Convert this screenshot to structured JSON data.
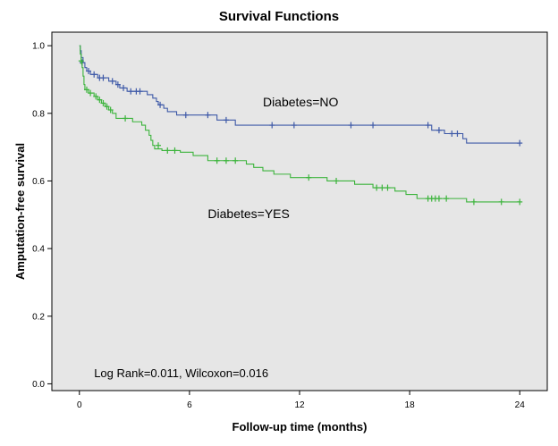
{
  "chart_data": {
    "type": "line",
    "title": "Survival Functions",
    "xlabel": "Follow-up time (months)",
    "ylabel": "Amputation-free survival",
    "xlim": [
      -1.5,
      25.5
    ],
    "ylim": [
      -0.02,
      1.04
    ],
    "x_ticks": [
      0,
      6,
      12,
      18,
      24
    ],
    "x_tick_labels": [
      "0",
      "6",
      "12",
      "18",
      "24"
    ],
    "y_ticks": [
      0.0,
      0.2,
      0.4,
      0.6,
      0.8,
      1.0
    ],
    "y_tick_labels": [
      "0.0",
      "0.2",
      "0.4",
      "0.6",
      "0.8",
      "1.0"
    ],
    "grid": false,
    "background_color": "#e6e6e6",
    "annotation": "Log Rank=0.011, Wilcoxon=0.016",
    "series": [
      {
        "name": "Diabetes=NO",
        "color": "#3f5aa8",
        "steps": [
          [
            0,
            1.0
          ],
          [
            0.05,
            0.985
          ],
          [
            0.1,
            0.965
          ],
          [
            0.2,
            0.95
          ],
          [
            0.3,
            0.935
          ],
          [
            0.4,
            0.925
          ],
          [
            0.6,
            0.915
          ],
          [
            1.0,
            0.905
          ],
          [
            1.6,
            0.895
          ],
          [
            2.0,
            0.885
          ],
          [
            2.2,
            0.875
          ],
          [
            2.6,
            0.865
          ],
          [
            3.7,
            0.855
          ],
          [
            4.0,
            0.845
          ],
          [
            4.2,
            0.835
          ],
          [
            4.3,
            0.825
          ],
          [
            4.6,
            0.815
          ],
          [
            4.8,
            0.805
          ],
          [
            5.3,
            0.795
          ],
          [
            7.5,
            0.78
          ],
          [
            8.5,
            0.765
          ],
          [
            19.2,
            0.75
          ],
          [
            19.9,
            0.74
          ],
          [
            20.9,
            0.725
          ],
          [
            21.1,
            0.712
          ],
          [
            24.0,
            0.712
          ]
        ],
        "censored": [
          [
            0.15,
            0.95
          ],
          [
            0.5,
            0.925
          ],
          [
            0.8,
            0.915
          ],
          [
            1.1,
            0.905
          ],
          [
            1.3,
            0.905
          ],
          [
            1.8,
            0.895
          ],
          [
            2.1,
            0.885
          ],
          [
            2.4,
            0.875
          ],
          [
            2.8,
            0.865
          ],
          [
            3.1,
            0.865
          ],
          [
            3.3,
            0.865
          ],
          [
            4.4,
            0.825
          ],
          [
            5.8,
            0.795
          ],
          [
            7.0,
            0.795
          ],
          [
            8.0,
            0.78
          ],
          [
            10.5,
            0.765
          ],
          [
            11.7,
            0.765
          ],
          [
            14.8,
            0.765
          ],
          [
            16.0,
            0.765
          ],
          [
            19.0,
            0.765
          ],
          [
            19.6,
            0.75
          ],
          [
            20.3,
            0.74
          ],
          [
            20.6,
            0.74
          ],
          [
            24.0,
            0.712
          ]
        ]
      },
      {
        "name": "Diabetes=YES",
        "color": "#3cb43c",
        "steps": [
          [
            0,
            1.0
          ],
          [
            0.05,
            0.975
          ],
          [
            0.1,
            0.955
          ],
          [
            0.15,
            0.935
          ],
          [
            0.2,
            0.91
          ],
          [
            0.25,
            0.885
          ],
          [
            0.3,
            0.87
          ],
          [
            0.5,
            0.86
          ],
          [
            0.8,
            0.85
          ],
          [
            1.0,
            0.84
          ],
          [
            1.2,
            0.83
          ],
          [
            1.4,
            0.82
          ],
          [
            1.6,
            0.81
          ],
          [
            1.8,
            0.8
          ],
          [
            2.0,
            0.785
          ],
          [
            2.9,
            0.775
          ],
          [
            3.4,
            0.765
          ],
          [
            3.6,
            0.75
          ],
          [
            3.8,
            0.735
          ],
          [
            3.9,
            0.72
          ],
          [
            4.0,
            0.705
          ],
          [
            4.1,
            0.695
          ],
          [
            4.5,
            0.69
          ],
          [
            5.5,
            0.685
          ],
          [
            6.2,
            0.675
          ],
          [
            7.0,
            0.66
          ],
          [
            9.1,
            0.65
          ],
          [
            9.5,
            0.64
          ],
          [
            10.0,
            0.63
          ],
          [
            10.6,
            0.62
          ],
          [
            11.5,
            0.61
          ],
          [
            13.5,
            0.6
          ],
          [
            15.0,
            0.59
          ],
          [
            16.0,
            0.58
          ],
          [
            17.2,
            0.57
          ],
          [
            17.8,
            0.56
          ],
          [
            18.4,
            0.548
          ],
          [
            21.1,
            0.538
          ],
          [
            24.0,
            0.538
          ]
        ],
        "censored": [
          [
            0.1,
            0.955
          ],
          [
            0.4,
            0.87
          ],
          [
            0.6,
            0.86
          ],
          [
            0.9,
            0.85
          ],
          [
            1.1,
            0.84
          ],
          [
            1.3,
            0.83
          ],
          [
            1.5,
            0.82
          ],
          [
            1.7,
            0.81
          ],
          [
            2.5,
            0.785
          ],
          [
            4.3,
            0.705
          ],
          [
            4.8,
            0.69
          ],
          [
            5.2,
            0.69
          ],
          [
            7.5,
            0.66
          ],
          [
            8.0,
            0.66
          ],
          [
            8.5,
            0.66
          ],
          [
            12.5,
            0.61
          ],
          [
            14.0,
            0.6
          ],
          [
            16.2,
            0.58
          ],
          [
            16.5,
            0.58
          ],
          [
            16.8,
            0.58
          ],
          [
            19.0,
            0.548
          ],
          [
            19.2,
            0.548
          ],
          [
            19.4,
            0.548
          ],
          [
            19.6,
            0.548
          ],
          [
            20.0,
            0.548
          ],
          [
            21.5,
            0.538
          ],
          [
            23.0,
            0.538
          ],
          [
            24.0,
            0.538
          ]
        ]
      }
    ],
    "series_labels": [
      "Diabetes=NO",
      "Diabetes=YES"
    ]
  }
}
